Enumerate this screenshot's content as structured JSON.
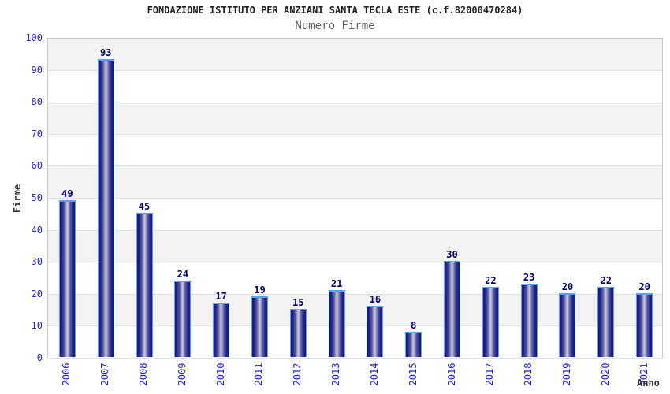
{
  "header": {
    "title": "FONDAZIONE ISTITUTO PER ANZIANI SANTA TECLA ESTE (c.f.82000470284)",
    "subtitle": "Numero Firme"
  },
  "chart_data": {
    "type": "bar",
    "title": "Numero Firme",
    "categories": [
      "2006",
      "2007",
      "2008",
      "2009",
      "2010",
      "2011",
      "2012",
      "2013",
      "2014",
      "2015",
      "2016",
      "2017",
      "2018",
      "2019",
      "2020",
      "2021"
    ],
    "values": [
      49,
      93,
      45,
      24,
      17,
      19,
      15,
      21,
      16,
      8,
      30,
      22,
      23,
      20,
      22,
      20
    ],
    "xlabel": "Anno",
    "ylabel": "Firme",
    "ylim": [
      0,
      100
    ],
    "y_ticks": [
      0,
      10,
      20,
      30,
      40,
      50,
      60,
      70,
      80,
      90,
      100
    ],
    "grid": true,
    "background_bands": "alternating gray/white every 10 units, gray at top",
    "legend_position": "none",
    "value_labels": "above bars"
  },
  "colors": {
    "title": "#222222",
    "subtitle": "#5f5f5f",
    "tick_label": "#2222cc",
    "value_label": "#000066",
    "axis_title": "#333333",
    "band_gray": "#f3f3f3",
    "grid_line": "#e0e0e0",
    "plot_border": "#c8c8c8",
    "bar_border": "#55a2ed",
    "bar_edge": "#17177e",
    "bar_center": "#c6c9e0"
  }
}
